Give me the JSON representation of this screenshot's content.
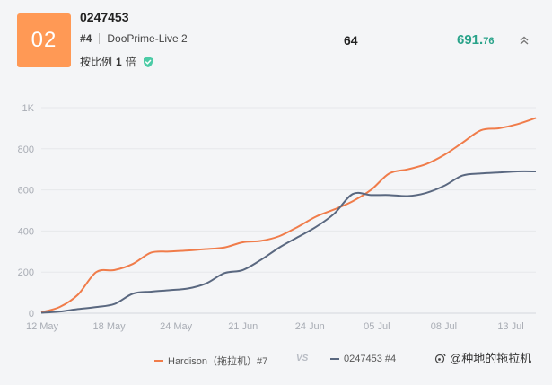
{
  "header": {
    "rank_badge": "02",
    "account_id": "0247453",
    "rank_label": "#4",
    "server": "DooPrime-Live 2",
    "leverage_prefix": "按比例",
    "leverage_value": "1",
    "leverage_suffix": "倍",
    "verified_icon": "shield-check-icon",
    "stat_count": "64",
    "stat_value_int": "691.",
    "stat_value_dec": "76",
    "collapse_icon": "chevrons-up-icon"
  },
  "colors": {
    "accent_orange": "#ff9955",
    "positive_green": "#2aa38a",
    "series_a": "#f07c4a",
    "series_b": "#5a6880"
  },
  "legend": {
    "series_a_label": "Hardison（拖拉机）#7",
    "vs_label": "VS",
    "series_b_label": "0247453 #4"
  },
  "watermark": "@种地的拖拉机",
  "chart_data": {
    "type": "line",
    "x_ticks": [
      "12 May",
      "18 May",
      "24 May",
      "21 Jun",
      "24 Jun",
      "05 Jul",
      "08 Jul",
      "13 Jul"
    ],
    "y_ticks": [
      "0",
      "200",
      "400",
      "600",
      "800",
      "1K"
    ],
    "ylim": [
      0,
      1000
    ],
    "series": [
      {
        "name": "Hardison（拖拉机）#7",
        "values": [
          5,
          30,
          90,
          200,
          210,
          240,
          295,
          300,
          305,
          312,
          320,
          345,
          352,
          375,
          420,
          470,
          505,
          545,
          600,
          680,
          700,
          725,
          770,
          830,
          890,
          900,
          920,
          950
        ]
      },
      {
        "name": "0247453 #4",
        "values": [
          2,
          8,
          20,
          30,
          45,
          95,
          105,
          112,
          120,
          145,
          195,
          210,
          260,
          320,
          370,
          420,
          485,
          580,
          575,
          575,
          570,
          585,
          620,
          670,
          680,
          685,
          690,
          690
        ]
      }
    ]
  }
}
